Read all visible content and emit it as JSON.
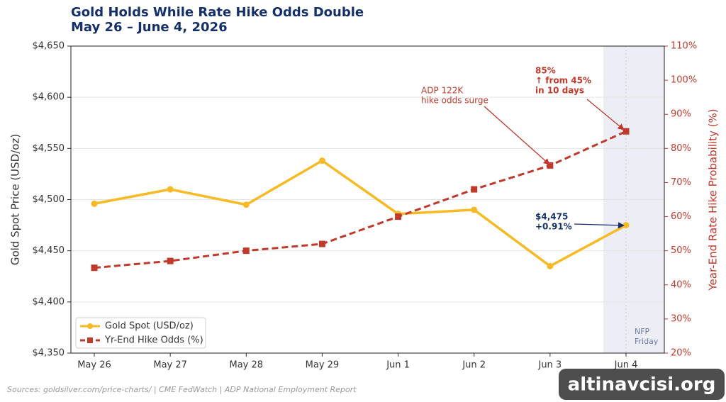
{
  "chart_data": {
    "type": "line",
    "title": "Gold Holds While Rate Hike Odds Double",
    "subtitle": "May 26 – June 4, 2026",
    "categories": [
      "May 26",
      "May 27",
      "May 28",
      "May 29",
      "Jun 1",
      "Jun 2",
      "Jun 3",
      "Jun 4"
    ],
    "series": [
      {
        "name": "Gold Spot (USD/oz)",
        "color": "#f7b924",
        "values": [
          4496,
          4510,
          4495,
          4538,
          4486,
          4490,
          4435,
          4475
        ]
      },
      {
        "name": "Yr-End Hike Odds (%)",
        "color": "#c0392b",
        "axis": "y2",
        "values": [
          45,
          47,
          50,
          52,
          60,
          68,
          75,
          85
        ]
      }
    ],
    "ylabel": "Gold Spot Price (USD/oz)",
    "y2label": "Year-End Rate Hike Probability (%)",
    "ylim": [
      4350,
      4650
    ],
    "yticks": [
      {
        "value": 4350,
        "label": "$4,350"
      },
      {
        "value": 4400,
        "label": "$4,400"
      },
      {
        "value": 4450,
        "label": "$4,450"
      },
      {
        "value": 4500,
        "label": "$4,500"
      },
      {
        "value": 4550,
        "label": "$4,550"
      },
      {
        "value": 4600,
        "label": "$4,600"
      },
      {
        "value": 4650,
        "label": "$4,650"
      }
    ],
    "y2lim": [
      20,
      110
    ],
    "y2ticks": [
      {
        "value": 20,
        "label": "20%"
      },
      {
        "value": 30,
        "label": "30%"
      },
      {
        "value": 40,
        "label": "40%"
      },
      {
        "value": 50,
        "label": "50%"
      },
      {
        "value": 60,
        "label": "60%"
      },
      {
        "value": 70,
        "label": "70%"
      },
      {
        "value": 80,
        "label": "80%"
      },
      {
        "value": 90,
        "label": "90%"
      },
      {
        "value": 100,
        "label": "100%"
      },
      {
        "value": 110,
        "label": "110%"
      }
    ],
    "grid": true,
    "legend": "lower left",
    "annotations": [
      {
        "lines": [
          "ADP 122K",
          "hike odds surge"
        ]
      },
      {
        "lines": [
          "85%",
          "↑ from 45%",
          "in 10 days"
        ]
      },
      {
        "lines": [
          "$4,475",
          "+0.91%"
        ]
      },
      {
        "lines": [
          "NFP",
          "Friday"
        ]
      }
    ],
    "source": "Sources: goldsilver.com/price-charts/  |  CME FedWatch  |  ADP National Employment Report",
    "watermark": "altinavcisi.org"
  }
}
